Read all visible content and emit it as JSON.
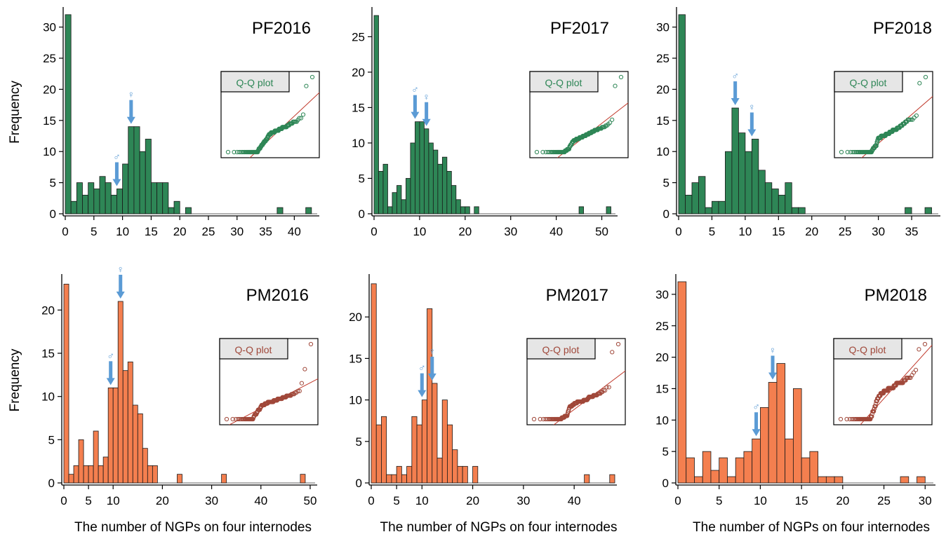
{
  "figure": {
    "ylabel": "Frequency",
    "xlabel": "The number of NGPs on four internodes",
    "inset_label": "Q-Q plot",
    "male_symbol": "♂",
    "female_symbol": "♀",
    "colors": {
      "pf_bar": "#2e8656",
      "pm_bar": "#f47f4f",
      "pf_qq": "#2e8656",
      "pm_qq": "#a0483a",
      "qq_line": "#c0392b",
      "arrow": "#5b9bd5",
      "inset_box": "#e6e6e6"
    }
  },
  "chart_data": [
    {
      "type": "bar",
      "title": "PF2016",
      "xlim": [
        0,
        44
      ],
      "ylim": [
        0,
        33
      ],
      "xticks": [
        0,
        5,
        10,
        15,
        20,
        25,
        30,
        35,
        40
      ],
      "yticks": [
        0,
        5,
        10,
        15,
        20,
        25,
        30
      ],
      "bins": [
        [
          0,
          32
        ],
        [
          1,
          2
        ],
        [
          2,
          5
        ],
        [
          3,
          3
        ],
        [
          4,
          5
        ],
        [
          5,
          4
        ],
        [
          6,
          6
        ],
        [
          7,
          5
        ],
        [
          8,
          3
        ],
        [
          9,
          4
        ],
        [
          10,
          8
        ],
        [
          11,
          14
        ],
        [
          12,
          14
        ],
        [
          13,
          10
        ],
        [
          14,
          12
        ],
        [
          15,
          5
        ],
        [
          16,
          5
        ],
        [
          17,
          5
        ],
        [
          18,
          1
        ],
        [
          19,
          2
        ],
        [
          21,
          1
        ],
        [
          37,
          1
        ],
        [
          42,
          1
        ]
      ],
      "male_arrow_x": 9,
      "female_arrow_x": 11.5
    },
    {
      "type": "bar",
      "title": "PF2017",
      "xlim": [
        0,
        53
      ],
      "ylim": [
        0,
        29
      ],
      "xticks": [
        0,
        10,
        20,
        30,
        40,
        50
      ],
      "yticks": [
        0,
        5,
        10,
        15,
        20,
        25
      ],
      "bins": [
        [
          0,
          28
        ],
        [
          1,
          6
        ],
        [
          2,
          7
        ],
        [
          3,
          1
        ],
        [
          4,
          3
        ],
        [
          5,
          4
        ],
        [
          6,
          2
        ],
        [
          7,
          5
        ],
        [
          8,
          10
        ],
        [
          9,
          13
        ],
        [
          10,
          13
        ],
        [
          11,
          12
        ],
        [
          12,
          10
        ],
        [
          13,
          9
        ],
        [
          14,
          7
        ],
        [
          15,
          8
        ],
        [
          16,
          6
        ],
        [
          17,
          4
        ],
        [
          18,
          2
        ],
        [
          19,
          1
        ],
        [
          20,
          1
        ],
        [
          22,
          1
        ],
        [
          45,
          1
        ],
        [
          51,
          1
        ]
      ],
      "male_arrow_x": 9,
      "female_arrow_x": 11.5
    },
    {
      "type": "bar",
      "title": "PF2018",
      "xlim": [
        0,
        39
      ],
      "ylim": [
        0,
        33
      ],
      "xticks": [
        0,
        5,
        10,
        15,
        20,
        25,
        30,
        35
      ],
      "yticks": [
        0,
        5,
        10,
        15,
        20,
        25,
        30
      ],
      "bins": [
        [
          0,
          32
        ],
        [
          1,
          3
        ],
        [
          2,
          5
        ],
        [
          3,
          6
        ],
        [
          4,
          1
        ],
        [
          5,
          2
        ],
        [
          6,
          2
        ],
        [
          7,
          10
        ],
        [
          8,
          17
        ],
        [
          9,
          13
        ],
        [
          10,
          10
        ],
        [
          11,
          12
        ],
        [
          12,
          7
        ],
        [
          13,
          5
        ],
        [
          14,
          4
        ],
        [
          15,
          3
        ],
        [
          16,
          5
        ],
        [
          17,
          1
        ],
        [
          18,
          1
        ],
        [
          34,
          1
        ],
        [
          37,
          1
        ]
      ],
      "male_arrow_x": 8.5,
      "female_arrow_x": 11
    },
    {
      "type": "bar",
      "title": "PM2016",
      "xlim": [
        0,
        51
      ],
      "ylim": [
        0,
        24
      ],
      "xticks": [
        0,
        10,
        20,
        30,
        40,
        50
      ],
      "minor_xticks": [
        5
      ],
      "yticks": [
        0,
        5,
        10,
        15,
        20
      ],
      "bins": [
        [
          0,
          23
        ],
        [
          1,
          1
        ],
        [
          2,
          2
        ],
        [
          3,
          5
        ],
        [
          4,
          2
        ],
        [
          5,
          2
        ],
        [
          6,
          6
        ],
        [
          7,
          2
        ],
        [
          8,
          3
        ],
        [
          9,
          11
        ],
        [
          10,
          11
        ],
        [
          11,
          21
        ],
        [
          12,
          13
        ],
        [
          13,
          14
        ],
        [
          14,
          9
        ],
        [
          15,
          8
        ],
        [
          16,
          4
        ],
        [
          17,
          2
        ],
        [
          18,
          2
        ],
        [
          23,
          1
        ],
        [
          32,
          1
        ],
        [
          48,
          1
        ]
      ],
      "male_arrow_x": 9.5,
      "female_arrow_x": 11.5
    },
    {
      "type": "bar",
      "title": "PM2017",
      "xlim": [
        0,
        48
      ],
      "ylim": [
        0,
        25
      ],
      "xticks": [
        0,
        5,
        10,
        20,
        30,
        40
      ],
      "yticks": [
        0,
        5,
        10,
        15,
        20
      ],
      "bins": [
        [
          0,
          24
        ],
        [
          1,
          7
        ],
        [
          2,
          8
        ],
        [
          3,
          1
        ],
        [
          4,
          1
        ],
        [
          5,
          2
        ],
        [
          6,
          1
        ],
        [
          7,
          2
        ],
        [
          8,
          8
        ],
        [
          9,
          7
        ],
        [
          10,
          10
        ],
        [
          11,
          21
        ],
        [
          12,
          12
        ],
        [
          13,
          3
        ],
        [
          14,
          10
        ],
        [
          15,
          7
        ],
        [
          16,
          4
        ],
        [
          17,
          2
        ],
        [
          18,
          2
        ],
        [
          20,
          2
        ],
        [
          42,
          1
        ],
        [
          47,
          1
        ]
      ],
      "male_arrow_x": 10,
      "female_arrow_x": 12
    },
    {
      "type": "bar",
      "title": "PM2018",
      "xlim": [
        0,
        31
      ],
      "ylim": [
        0,
        33
      ],
      "xticks": [
        0,
        5,
        10,
        15,
        20,
        25,
        30
      ],
      "yticks": [
        0,
        5,
        10,
        15,
        20,
        25,
        30
      ],
      "bins": [
        [
          0,
          32
        ],
        [
          1,
          4
        ],
        [
          2,
          1
        ],
        [
          3,
          5
        ],
        [
          4,
          2
        ],
        [
          5,
          4
        ],
        [
          6,
          1
        ],
        [
          7,
          4
        ],
        [
          8,
          5
        ],
        [
          9,
          7
        ],
        [
          10,
          12
        ],
        [
          11,
          16
        ],
        [
          12,
          19
        ],
        [
          13,
          7
        ],
        [
          14,
          15
        ],
        [
          15,
          4
        ],
        [
          16,
          5
        ],
        [
          17,
          1
        ],
        [
          18,
          1
        ],
        [
          19,
          1
        ],
        [
          27,
          1
        ],
        [
          29,
          1
        ]
      ],
      "male_arrow_x": 9.5,
      "female_arrow_x": 11.5
    }
  ]
}
